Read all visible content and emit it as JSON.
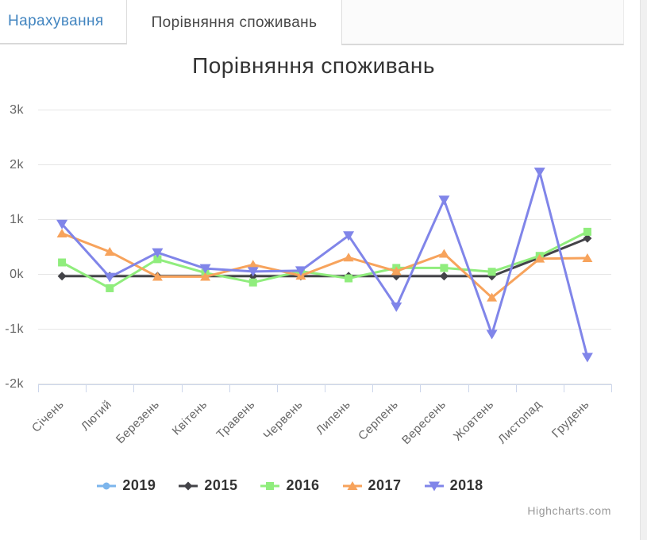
{
  "tabs": [
    {
      "label": "Нарахування",
      "active": false
    },
    {
      "label": "Порівняння споживань",
      "active": true
    }
  ],
  "credits": "Highcharts.com",
  "colors": {
    "tab_link": "#4285c0",
    "grid": "#e6e6e6",
    "axis": "#ccd6eb",
    "axis_label": "#666666",
    "title": "#333333",
    "legend_text": "#333333"
  },
  "chart_data": {
    "type": "line",
    "title": "Порівняння споживань",
    "categories": [
      "Січень",
      "Лютий",
      "Березень",
      "Квітень",
      "Травень",
      "Червень",
      "Липень",
      "Серпень",
      "Вересень",
      "Жовтень",
      "Листопад",
      "Грудень"
    ],
    "yticks": [
      {
        "v": 3000,
        "label": "3k"
      },
      {
        "v": 2000,
        "label": "2k"
      },
      {
        "v": 1000,
        "label": "1k"
      },
      {
        "v": 0,
        "label": "0k"
      },
      {
        "v": -1000,
        "label": "-1k"
      },
      {
        "v": -2000,
        "label": "-2k"
      }
    ],
    "ylim": [
      -2000,
      3000
    ],
    "grid": true,
    "legend_position": "bottom",
    "series": [
      {
        "name": "2019",
        "color": "#7cb5ec",
        "marker": "circle",
        "values": [
          -40,
          null,
          null,
          null,
          null,
          null,
          null,
          null,
          null,
          null,
          null,
          null
        ]
      },
      {
        "name": "2015",
        "color": "#434348",
        "marker": "diamond",
        "values": [
          -40,
          -40,
          -40,
          -40,
          -40,
          -40,
          -40,
          -40,
          -40,
          -40,
          300,
          650
        ]
      },
      {
        "name": "2016",
        "color": "#90ed7d",
        "marker": "square",
        "values": [
          210,
          -260,
          270,
          20,
          -155,
          50,
          -80,
          110,
          110,
          40,
          330,
          770
        ]
      },
      {
        "name": "2017",
        "color": "#f7a35c",
        "marker": "triangle",
        "values": [
          740,
          405,
          -50,
          -50,
          170,
          -30,
          300,
          50,
          370,
          -430,
          280,
          290
        ]
      },
      {
        "name": "2018",
        "color": "#8085e9",
        "marker": "triangle-down",
        "values": [
          910,
          -60,
          390,
          100,
          45,
          60,
          700,
          -600,
          1350,
          -1100,
          1860,
          -1520
        ]
      }
    ]
  }
}
